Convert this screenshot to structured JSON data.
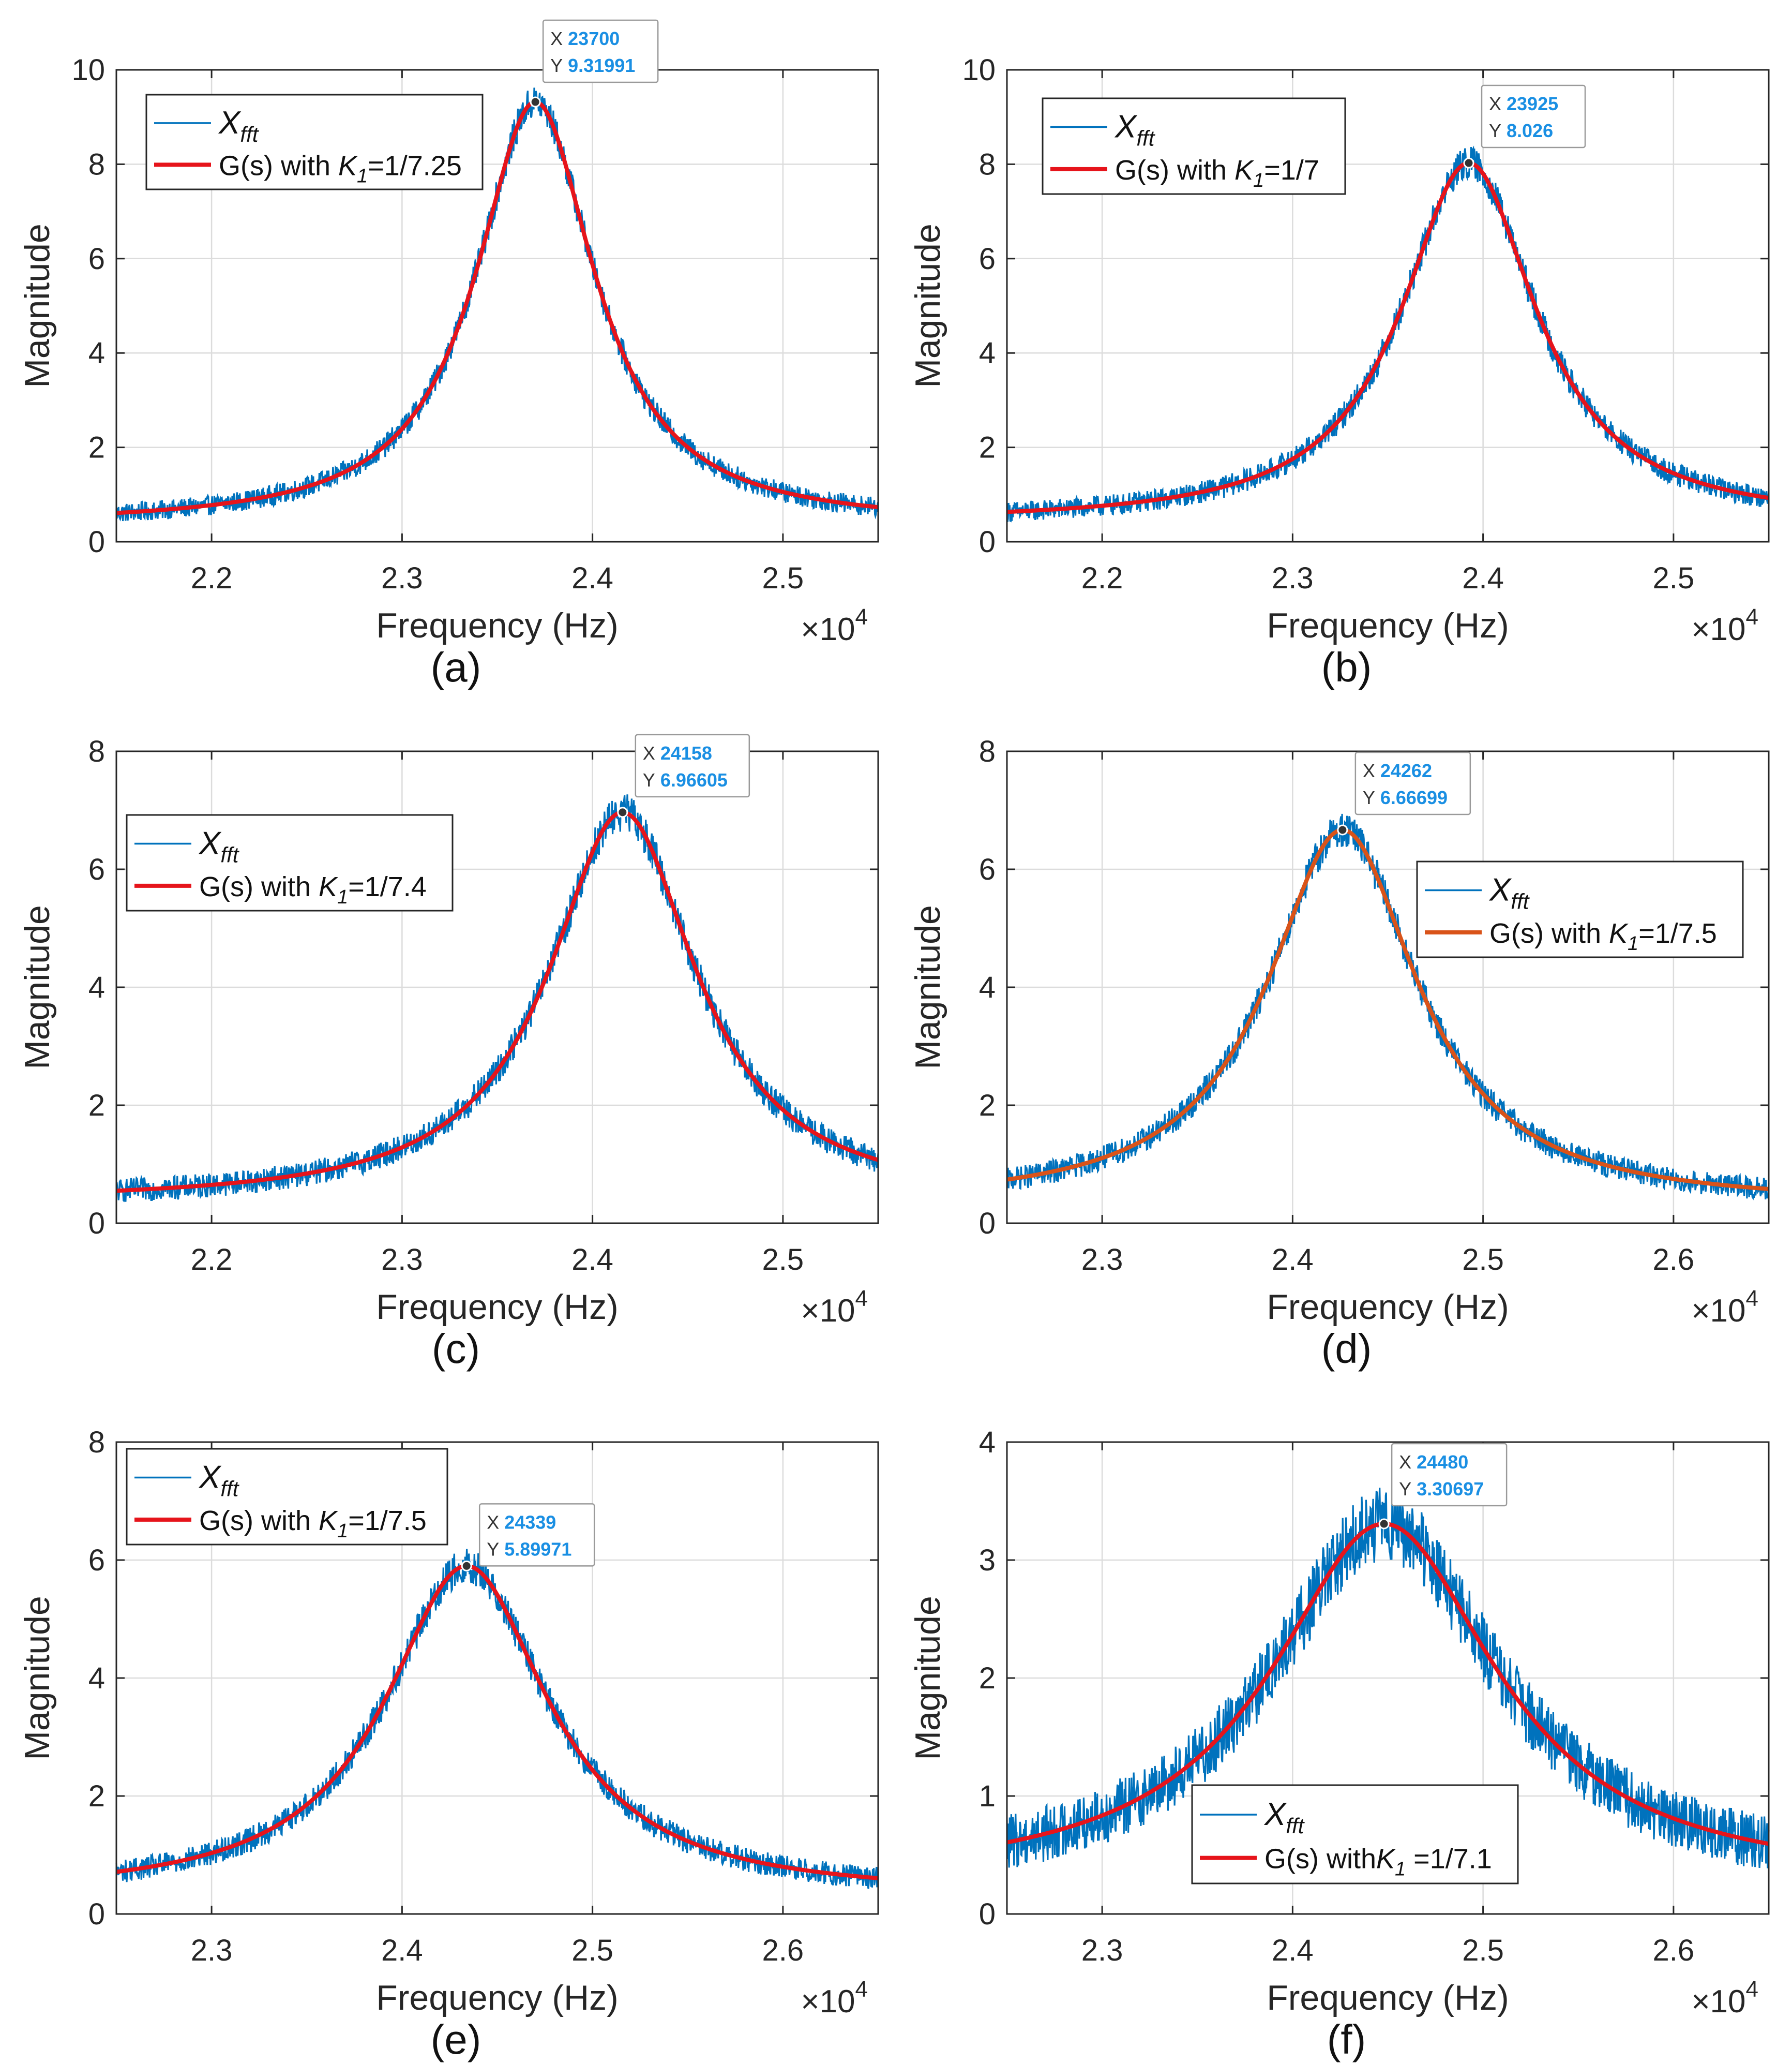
{
  "chart_data": [
    {
      "type": "line",
      "panel": "(a)",
      "xlabel": "Frequency (Hz)",
      "ylabel": "Magnitude",
      "xlim": [
        21500,
        25500
      ],
      "ylim": [
        0,
        10
      ],
      "xticks": [
        22000,
        23000,
        24000,
        25000
      ],
      "xtick_labels": [
        "2.2",
        "2.3",
        "2.4",
        "2.5"
      ],
      "yticks": [
        0,
        2,
        4,
        6,
        8,
        10
      ],
      "x_exponent_label": "×10",
      "x_exponent": "4",
      "grid": true,
      "legend_position": "top-left",
      "series": [
        {
          "name_main": "X",
          "name_sub": "fft",
          "kind": "noisy-measurement",
          "color": "#0072BD",
          "noise": 0.19
        },
        {
          "name_prefix": "G(s) with ",
          "name_var": "K",
          "name_sub": "1",
          "name_suffix": "=1/7.25",
          "kind": "model-fit",
          "color": "#E6141B",
          "peak_x": 23700,
          "peak_y": 9.32,
          "half_width": 380,
          "baseline": 0.35
        }
      ],
      "datatip": {
        "x_label": "X",
        "x_value": "23700",
        "y_label": "Y",
        "y_value": "9.31991",
        "x": 23700,
        "y": 9.31991
      }
    },
    {
      "type": "line",
      "panel": "(b)",
      "xlabel": "Frequency (Hz)",
      "ylabel": "Magnitude",
      "xlim": [
        21500,
        25500
      ],
      "ylim": [
        0,
        10
      ],
      "xticks": [
        22000,
        23000,
        24000,
        25000
      ],
      "xtick_labels": [
        "2.2",
        "2.3",
        "2.4",
        "2.5"
      ],
      "yticks": [
        0,
        2,
        4,
        6,
        8,
        10
      ],
      "x_exponent_label": "×10",
      "x_exponent": "4",
      "grid": true,
      "legend_position": "top-left",
      "series": [
        {
          "name_main": "X",
          "name_sub": "fft",
          "kind": "noisy-measurement",
          "color": "#0072BD",
          "noise": 0.2
        },
        {
          "name_prefix": "G(s) with ",
          "name_var": "K",
          "name_sub": "1",
          "name_suffix": "=1/7",
          "kind": "model-fit",
          "color": "#E6141B",
          "peak_x": 23925,
          "peak_y": 8.026,
          "half_width": 430,
          "baseline": 0.4
        }
      ],
      "datatip": {
        "x_label": "X",
        "x_value": "23925",
        "y_label": "Y",
        "y_value": "8.026",
        "x": 23925,
        "y": 8.026
      }
    },
    {
      "type": "line",
      "panel": "(c)",
      "xlabel": "Frequency (Hz)",
      "ylabel": "Magnitude",
      "xlim": [
        21500,
        25500
      ],
      "ylim": [
        0,
        8
      ],
      "xticks": [
        22000,
        23000,
        24000,
        25000
      ],
      "xtick_labels": [
        "2.2",
        "2.3",
        "2.4",
        "2.5"
      ],
      "yticks": [
        0,
        2,
        4,
        6,
        8
      ],
      "x_exponent_label": "×10",
      "x_exponent": "4",
      "grid": true,
      "legend_position": "top-left",
      "series": [
        {
          "name_main": "X",
          "name_sub": "fft",
          "kind": "noisy-measurement",
          "color": "#0072BD",
          "noise": 0.19
        },
        {
          "name_prefix": "G(s) with ",
          "name_var": "K",
          "name_sub": "1",
          "name_suffix": "=1/7.4",
          "kind": "model-fit",
          "color": "#E6141B",
          "peak_x": 24158,
          "peak_y": 6.966,
          "half_width": 470,
          "baseline": 0.35
        }
      ],
      "datatip": {
        "x_label": "X",
        "x_value": "24158",
        "y_label": "Y",
        "y_value": "6.96605",
        "x": 24158,
        "y": 6.96605
      }
    },
    {
      "type": "line",
      "panel": "(d)",
      "xlabel": "Frequency (Hz)",
      "ylabel": "Magnitude",
      "xlim": [
        22500,
        26500
      ],
      "ylim": [
        0,
        8
      ],
      "xticks": [
        23000,
        24000,
        25000,
        26000
      ],
      "xtick_labels": [
        "2.3",
        "2.4",
        "2.5",
        "2.6"
      ],
      "yticks": [
        0,
        2,
        4,
        6,
        8
      ],
      "x_exponent_label": "×10",
      "x_exponent": "4",
      "grid": true,
      "legend_position": "right",
      "series": [
        {
          "name_main": "X",
          "name_sub": "fft",
          "kind": "noisy-measurement",
          "color": "#0072BD",
          "noise": 0.18
        },
        {
          "name_prefix": "G(s) with ",
          "name_var": "K",
          "name_sub": "1",
          "name_suffix": "=1/7.5",
          "kind": "model-fit",
          "color": "#D95319",
          "peak_x": 24262,
          "peak_y": 6.667,
          "half_width": 480,
          "baseline": 0.3
        }
      ],
      "datatip": {
        "x_label": "X",
        "x_value": "24262",
        "y_label": "Y",
        "y_value": "6.66699",
        "x": 24262,
        "y": 6.66699
      }
    },
    {
      "type": "line",
      "panel": "(e)",
      "xlabel": "Frequency (Hz)",
      "ylabel": "Magnitude",
      "xlim": [
        22500,
        26500
      ],
      "ylim": [
        0,
        8
      ],
      "xticks": [
        23000,
        24000,
        25000,
        26000
      ],
      "xtick_labels": [
        "2.3",
        "2.4",
        "2.5",
        "2.6"
      ],
      "yticks": [
        0,
        2,
        4,
        6,
        8
      ],
      "x_exponent_label": "×10",
      "x_exponent": "4",
      "grid": true,
      "legend_position": "top-left",
      "series": [
        {
          "name_main": "X",
          "name_sub": "fft",
          "kind": "noisy-measurement",
          "color": "#0072BD",
          "noise": 0.18
        },
        {
          "name_prefix": "G(s) with ",
          "name_var": "K",
          "name_sub": "1",
          "name_suffix": "=1/7.5",
          "kind": "model-fit",
          "color": "#E6141B",
          "peak_x": 24339,
          "peak_y": 5.9,
          "half_width": 520,
          "baseline": 0.3
        }
      ],
      "datatip": {
        "x_label": "X",
        "x_value": "24339",
        "y_label": "Y",
        "y_value": "5.89971",
        "x": 24339,
        "y": 5.89971
      }
    },
    {
      "type": "line",
      "panel": "(f)",
      "xlabel": "Frequency (Hz)",
      "ylabel": "Magnitude",
      "xlim": [
        22500,
        26500
      ],
      "ylim": [
        0,
        4
      ],
      "xticks": [
        23000,
        24000,
        25000,
        26000
      ],
      "xtick_labels": [
        "2.3",
        "2.4",
        "2.5",
        "2.6"
      ],
      "yticks": [
        0,
        1,
        2,
        3,
        4
      ],
      "x_exponent_label": "×10",
      "x_exponent": "4",
      "grid": true,
      "legend_position": "bottom-center",
      "series": [
        {
          "name_main": "X",
          "name_sub": "fft",
          "kind": "noisy-measurement",
          "color": "#0072BD",
          "noise": 0.22
        },
        {
          "name_prefix": "G(s) with",
          "name_var": "K",
          "name_sub": "1",
          "name_suffix": " =1/7.1",
          "kind": "model-fit",
          "color": "#E6141B",
          "peak_x": 24480,
          "peak_y": 3.307,
          "half_width": 720,
          "baseline": 0.25
        }
      ],
      "datatip": {
        "x_label": "X",
        "x_value": "24480",
        "y_label": "Y",
        "y_value": "3.30697",
        "x": 24480,
        "y": 3.30697
      }
    }
  ]
}
